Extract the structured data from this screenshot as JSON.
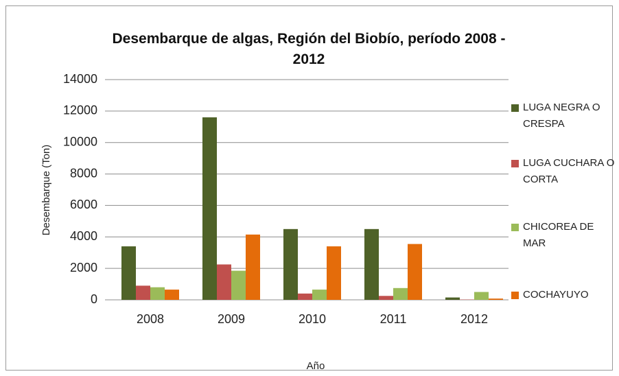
{
  "chart_data": {
    "type": "bar",
    "title": "Desembarque de algas, Región del Biobío, período 2008 - 2012",
    "x_label": "Año",
    "y_label": "Desembarque (Ton)",
    "categories": [
      "2008",
      "2009",
      "2010",
      "2011",
      "2012"
    ],
    "series": [
      {
        "name": "LUGA NEGRA O CRESPA",
        "color": "#4f6228",
        "values": [
          3400,
          11600,
          4500,
          4500,
          150
        ]
      },
      {
        "name": "LUGA CUCHARA O CORTA",
        "color": "#c0504d",
        "values": [
          900,
          2250,
          400,
          250,
          20
        ]
      },
      {
        "name": "CHICOREA DE MAR",
        "color": "#9bbb59",
        "values": [
          800,
          1850,
          650,
          750,
          500
        ]
      },
      {
        "name": "COCHAYUYO",
        "color": "#e46c0a",
        "values": [
          650,
          4150,
          3400,
          3550,
          80
        ]
      }
    ],
    "ylim": [
      0,
      14000
    ],
    "yticks": [
      0,
      2000,
      4000,
      6000,
      8000,
      10000,
      12000,
      14000
    ],
    "grid": true,
    "legend": "right"
  }
}
